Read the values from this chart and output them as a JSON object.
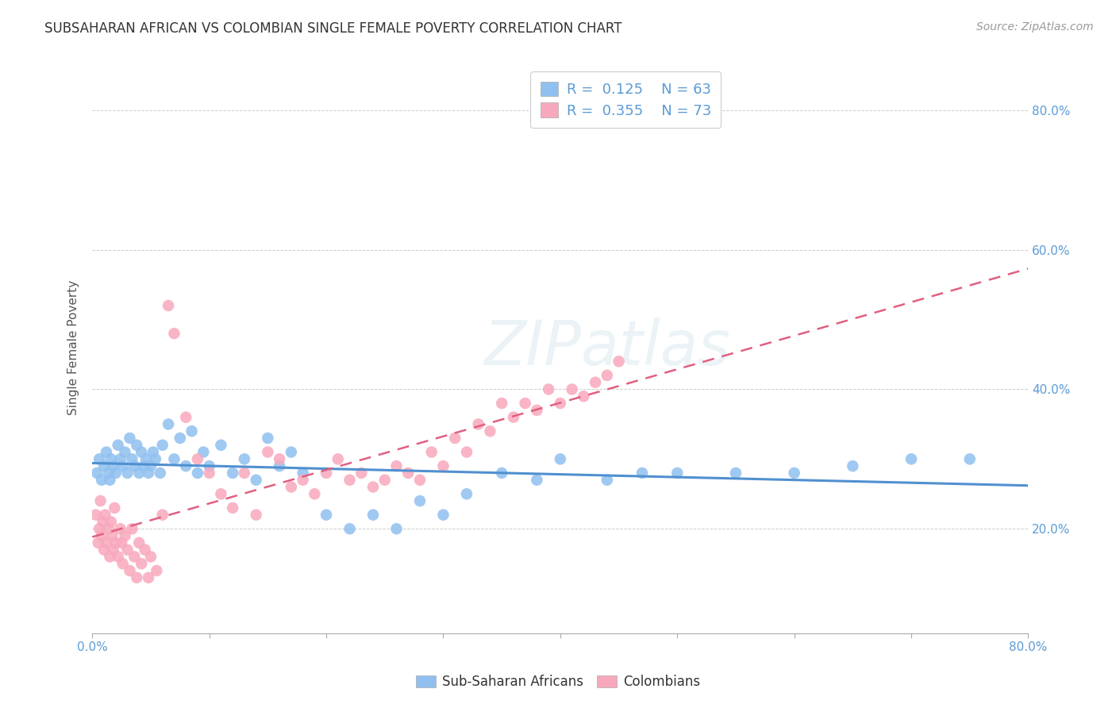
{
  "title": "SUBSAHARAN AFRICAN VS COLOMBIAN SINGLE FEMALE POVERTY CORRELATION CHART",
  "source": "Source: ZipAtlas.com",
  "ylabel": "Single Female Poverty",
  "legend_label_blue": "Sub-Saharan Africans",
  "legend_label_pink": "Colombians",
  "blue_R": "0.125",
  "blue_N": "63",
  "pink_R": "0.355",
  "pink_N": "73",
  "blue_color": "#90c0f0",
  "pink_color": "#f8a8bc",
  "blue_line_color": "#5090d0",
  "pink_line_color": "#e06080",
  "watermark": "ZIPatlas",
  "background_color": "#ffffff",
  "grid_color": "#cccccc",
  "title_color": "#333333",
  "source_color": "#999999",
  "blue_scatter_x": [
    0.4,
    0.6,
    0.8,
    1.0,
    1.2,
    1.4,
    1.5,
    1.6,
    1.8,
    2.0,
    2.2,
    2.4,
    2.6,
    2.8,
    3.0,
    3.2,
    3.4,
    3.6,
    3.8,
    4.0,
    4.2,
    4.4,
    4.6,
    4.8,
    5.0,
    5.2,
    5.4,
    5.8,
    6.0,
    6.5,
    7.0,
    7.5,
    8.0,
    8.5,
    9.0,
    9.5,
    10.0,
    11.0,
    12.0,
    13.0,
    14.0,
    15.0,
    16.0,
    17.0,
    18.0,
    20.0,
    22.0,
    24.0,
    26.0,
    28.0,
    30.0,
    32.0,
    35.0,
    38.0,
    40.0,
    44.0,
    47.0,
    50.0,
    55.0,
    60.0,
    65.0,
    70.0,
    75.0
  ],
  "blue_scatter_y": [
    28,
    30,
    27,
    29,
    31,
    28,
    27,
    30,
    29,
    28,
    32,
    30,
    29,
    31,
    28,
    33,
    30,
    29,
    32,
    28,
    31,
    29,
    30,
    28,
    29,
    31,
    30,
    28,
    32,
    35,
    30,
    33,
    29,
    34,
    28,
    31,
    29,
    32,
    28,
    30,
    27,
    33,
    29,
    31,
    28,
    22,
    20,
    22,
    20,
    24,
    22,
    25,
    28,
    27,
    30,
    27,
    28,
    28,
    28,
    28,
    29,
    30,
    30
  ],
  "pink_scatter_x": [
    0.3,
    0.5,
    0.6,
    0.7,
    0.8,
    0.9,
    1.0,
    1.1,
    1.2,
    1.4,
    1.5,
    1.6,
    1.7,
    1.8,
    1.9,
    2.0,
    2.2,
    2.4,
    2.5,
    2.6,
    2.8,
    3.0,
    3.2,
    3.4,
    3.6,
    3.8,
    4.0,
    4.2,
    4.5,
    4.8,
    5.0,
    5.5,
    6.0,
    6.5,
    7.0,
    8.0,
    9.0,
    10.0,
    11.0,
    12.0,
    13.0,
    14.0,
    15.0,
    16.0,
    17.0,
    18.0,
    19.0,
    20.0,
    21.0,
    22.0,
    23.0,
    24.0,
    25.0,
    26.0,
    27.0,
    28.0,
    29.0,
    30.0,
    31.0,
    32.0,
    33.0,
    34.0,
    35.0,
    36.0,
    37.0,
    38.0,
    39.0,
    40.0,
    41.0,
    42.0,
    43.0,
    44.0,
    45.0
  ],
  "pink_scatter_y": [
    22,
    18,
    20,
    24,
    19,
    21,
    17,
    22,
    18,
    20,
    16,
    21,
    19,
    17,
    23,
    18,
    16,
    20,
    18,
    15,
    19,
    17,
    14,
    20,
    16,
    13,
    18,
    15,
    17,
    13,
    16,
    14,
    22,
    52,
    48,
    36,
    30,
    28,
    25,
    23,
    28,
    22,
    31,
    30,
    26,
    27,
    25,
    28,
    30,
    27,
    28,
    26,
    27,
    29,
    28,
    27,
    31,
    29,
    33,
    31,
    35,
    34,
    38,
    36,
    38,
    37,
    40,
    38,
    40,
    39,
    41,
    42,
    44
  ]
}
